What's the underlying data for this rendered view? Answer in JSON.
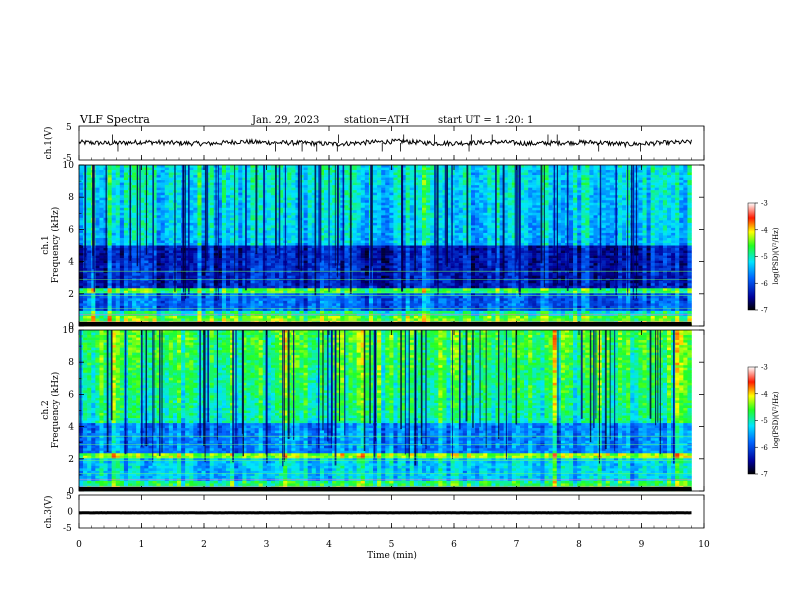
{
  "header": {
    "title": "VLF  Spectra",
    "date": "Jan. 29, 2023",
    "station": "station=ATH",
    "start": "start  UT  =   1  :20: 1"
  },
  "colors": {
    "trace": "#000000",
    "spectrogram_low": "#000066",
    "spectrogram_high": "#ffffff"
  },
  "chart_data": [
    {
      "type": "line",
      "name": "ch1-waveform",
      "ylabel": "ch.1(V)",
      "ylim": [
        -5,
        5
      ],
      "y_ticks": [
        "5",
        "-5"
      ],
      "xlim": [
        0,
        10
      ],
      "x_end": 9.8,
      "series": [
        {
          "values_approx": [
            0.2,
            -0.1,
            0.3,
            0.0,
            -0.2,
            0.4,
            0.1,
            0.0,
            -0.3,
            0.2,
            0.5,
            -0.1,
            0.0,
            0.3,
            -0.2,
            0.1,
            0.2,
            -0.4,
            0.0,
            0.3
          ]
        }
      ]
    },
    {
      "type": "heatmap",
      "name": "ch1-spectrogram",
      "ylabel": "ch.1\nFrequency (kHz)",
      "ylabel_line1": "ch.1",
      "ylabel_line2": "Frequency (kHz)",
      "ylim": [
        0,
        10
      ],
      "y_ticks": [
        "0",
        "2",
        "4",
        "6",
        "8",
        "10"
      ],
      "xlim": [
        0,
        10
      ],
      "x_end": 9.8,
      "colorbar": {
        "label": "log(PSD)(V²/Hz)",
        "range": [
          -7,
          -3
        ],
        "ticks": [
          "-3",
          "-4",
          "-5",
          "-6",
          "-7"
        ]
      }
    },
    {
      "type": "heatmap",
      "name": "ch2-spectrogram",
      "ylabel": "ch.2\nFrequency (kHz)",
      "ylabel_line1": "ch.2",
      "ylabel_line2": "Frequency (kHz)",
      "ylim": [
        0,
        10
      ],
      "y_ticks": [
        "0",
        "2",
        "4",
        "6",
        "8",
        "10"
      ],
      "xlim": [
        0,
        10
      ],
      "x_end": 9.8,
      "colorbar": {
        "label": "log(PSD)(V²/Hz)",
        "range": [
          -7,
          -3
        ],
        "ticks": [
          "-3",
          "-4",
          "-5",
          "-6",
          "-7"
        ]
      }
    },
    {
      "type": "line",
      "name": "ch3-waveform",
      "ylabel": "ch.3(V)",
      "ylim": [
        -5,
        5
      ],
      "y_ticks": [
        "5",
        "0",
        "-5"
      ],
      "xlim": [
        0,
        10
      ],
      "x_end": 9.8,
      "series": [
        {
          "values_approx": [
            -0.4,
            -0.4,
            -0.4,
            -0.4,
            -0.4,
            -0.4,
            -0.4,
            -0.4,
            -0.4,
            -0.4
          ]
        }
      ]
    }
  ],
  "x_axis": {
    "label": "Time  (min)",
    "ticks": [
      "0",
      "1",
      "2",
      "3",
      "4",
      "5",
      "6",
      "7",
      "8",
      "9",
      "10"
    ],
    "range": [
      0,
      10
    ]
  }
}
